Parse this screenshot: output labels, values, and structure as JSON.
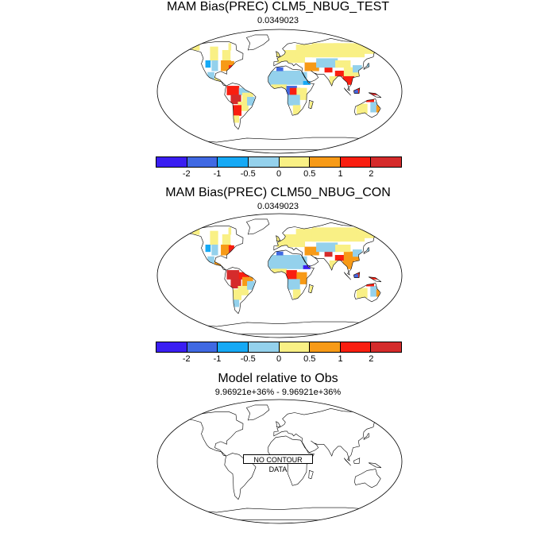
{
  "panels": [
    {
      "title": "MAM Bias(PREC) CLM5_NBUG_TEST",
      "subtitle": "0.0349023"
    },
    {
      "title": "MAM Bias(PREC) CLM50_NBUG_CON",
      "subtitle": "0.0349023"
    },
    {
      "title": "Model relative to Obs",
      "subtitle": "9.96921e+36% - 9.96921e+36%",
      "no_data_label": "NO CONTOUR DATA"
    }
  ],
  "colorbar": {
    "colors": [
      "#3a1ef2",
      "#4069e3",
      "#16a9f5",
      "#94d1ec",
      "#f9f085",
      "#f79a17",
      "#f91e10",
      "#d52b2b"
    ],
    "labels": [
      "-2",
      "-1",
      "-0.5",
      "0",
      "0.5",
      "1",
      "2"
    ]
  },
  "chart_data": [
    {
      "type": "heatmap",
      "title": "MAM Bias(PREC) CLM5_NBUG_TEST",
      "subtitle": "0.0349023",
      "projection": "Robinson",
      "legend": "bottom colorbar",
      "bins": [
        "<-2",
        "-2 to -1",
        "-1 to -0.5",
        "-0.5 to 0",
        "0 to 0.5",
        "0.5 to 1",
        "1 to 2",
        ">2"
      ],
      "tick_labels": [
        "-2",
        "-1",
        "-0.5",
        "0",
        "0.5",
        "1",
        "2"
      ]
    },
    {
      "type": "heatmap",
      "title": "MAM Bias(PREC) CLM50_NBUG_CON",
      "subtitle": "0.0349023",
      "projection": "Robinson",
      "legend": "bottom colorbar",
      "bins": [
        "<-2",
        "-2 to -1",
        "-1 to -0.5",
        "-0.5 to 0",
        "0 to 0.5",
        "0.5 to 1",
        "1 to 2",
        ">2"
      ],
      "tick_labels": [
        "-2",
        "-1",
        "-0.5",
        "0",
        "0.5",
        "1",
        "2"
      ]
    },
    {
      "type": "heatmap",
      "title": "Model relative to Obs",
      "subtitle": "9.96921e+36% - 9.96921e+36%",
      "projection": "Robinson",
      "annotation": "NO CONTOUR DATA"
    }
  ]
}
